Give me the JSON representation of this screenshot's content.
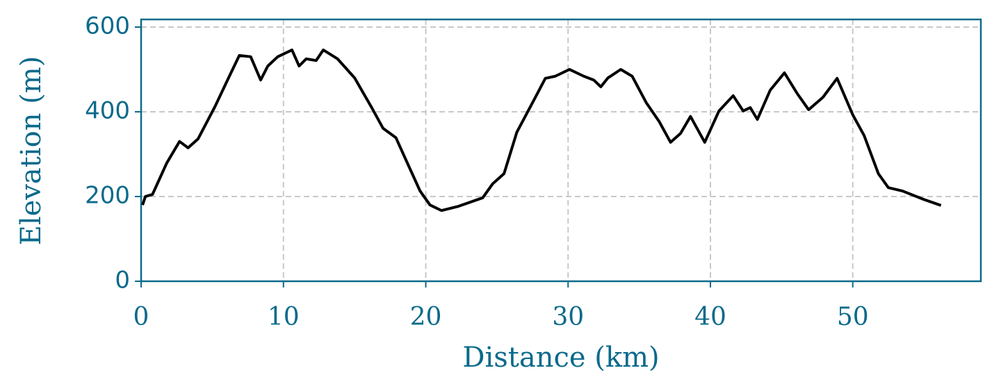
{
  "chart_data": {
    "type": "line",
    "xlabel": "Distance (km)",
    "ylabel": "Elevation (m)",
    "x": [
      0.1,
      0.3,
      0.8,
      1.8,
      2.7,
      3.3,
      4.0,
      5.2,
      6.2,
      6.9,
      7.7,
      8.4,
      8.9,
      9.6,
      10.6,
      11.1,
      11.6,
      12.3,
      12.8,
      13.8,
      15.0,
      16.2,
      17.0,
      17.9,
      18.6,
      19.6,
      20.3,
      21.1,
      22.3,
      24.0,
      24.7,
      25.5,
      26.4,
      27.7,
      28.4,
      29.1,
      30.1,
      31.1,
      31.8,
      32.3,
      32.8,
      33.7,
      34.5,
      35.5,
      36.4,
      37.2,
      37.9,
      38.6,
      39.6,
      40.6,
      41.6,
      42.3,
      42.8,
      43.3,
      44.2,
      45.2,
      46.1,
      46.9,
      47.9,
      48.9,
      50.0,
      50.8,
      51.8,
      52.5,
      53.5,
      55.0,
      56.2
    ],
    "series": [
      {
        "color": "#000000",
        "values": [
          180,
          200,
          205,
          279,
          330,
          315,
          336,
          413,
          484,
          533,
          530,
          475,
          508,
          530,
          546,
          508,
          525,
          521,
          546,
          525,
          480,
          410,
          361,
          339,
          287,
          213,
          180,
          167,
          177,
          197,
          230,
          254,
          352,
          434,
          479,
          484,
          500,
          484,
          475,
          459,
          480,
          500,
          484,
          421,
          377,
          328,
          349,
          389,
          328,
          402,
          438,
          402,
          410,
          382,
          451,
          492,
          443,
          405,
          434,
          479,
          393,
          344,
          254,
          221,
          213,
          193,
          179
        ]
      }
    ],
    "xlim": [
      0,
      59
    ],
    "ylim": [
      0,
      618
    ],
    "xticks": [
      0,
      10,
      20,
      30,
      40,
      50
    ],
    "yticks": [
      0,
      200,
      400,
      600
    ],
    "grid": true,
    "axis_color": "#0b6a8b"
  }
}
